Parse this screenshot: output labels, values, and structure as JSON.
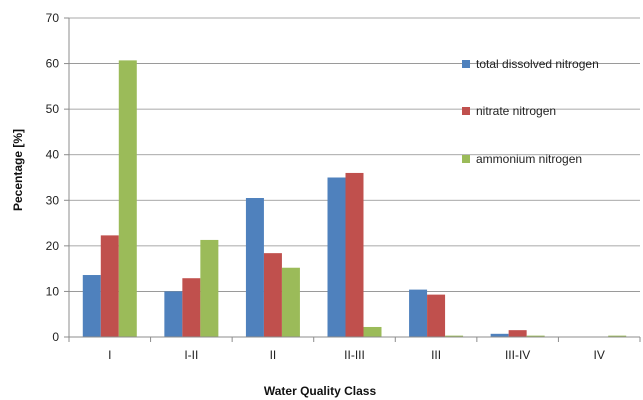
{
  "chart_data": {
    "type": "bar",
    "title": "",
    "xlabel": "Water Quality Class",
    "ylabel": "Pecentage [%]",
    "ylim": [
      0,
      70
    ],
    "yticks": [
      0,
      10,
      20,
      30,
      40,
      50,
      60,
      70
    ],
    "grid": "horizontal",
    "legend_position": "right",
    "categories": [
      "I",
      "I-II",
      "II",
      "II-III",
      "III",
      "III-IV",
      "IV"
    ],
    "series": [
      {
        "name": "total dissolved nitrogen",
        "color": "#4F81BD",
        "values": [
          13.6,
          10.0,
          30.5,
          35.0,
          10.4,
          0.7,
          0
        ]
      },
      {
        "name": "nitrate nitrogen",
        "color": "#C0504D",
        "values": [
          22.3,
          12.9,
          18.4,
          36.0,
          9.3,
          1.5,
          0
        ]
      },
      {
        "name": "ammonium nitrogen",
        "color": "#9BBB59",
        "values": [
          60.7,
          21.3,
          15.2,
          2.2,
          0.3,
          0.3,
          0.3
        ]
      }
    ]
  }
}
